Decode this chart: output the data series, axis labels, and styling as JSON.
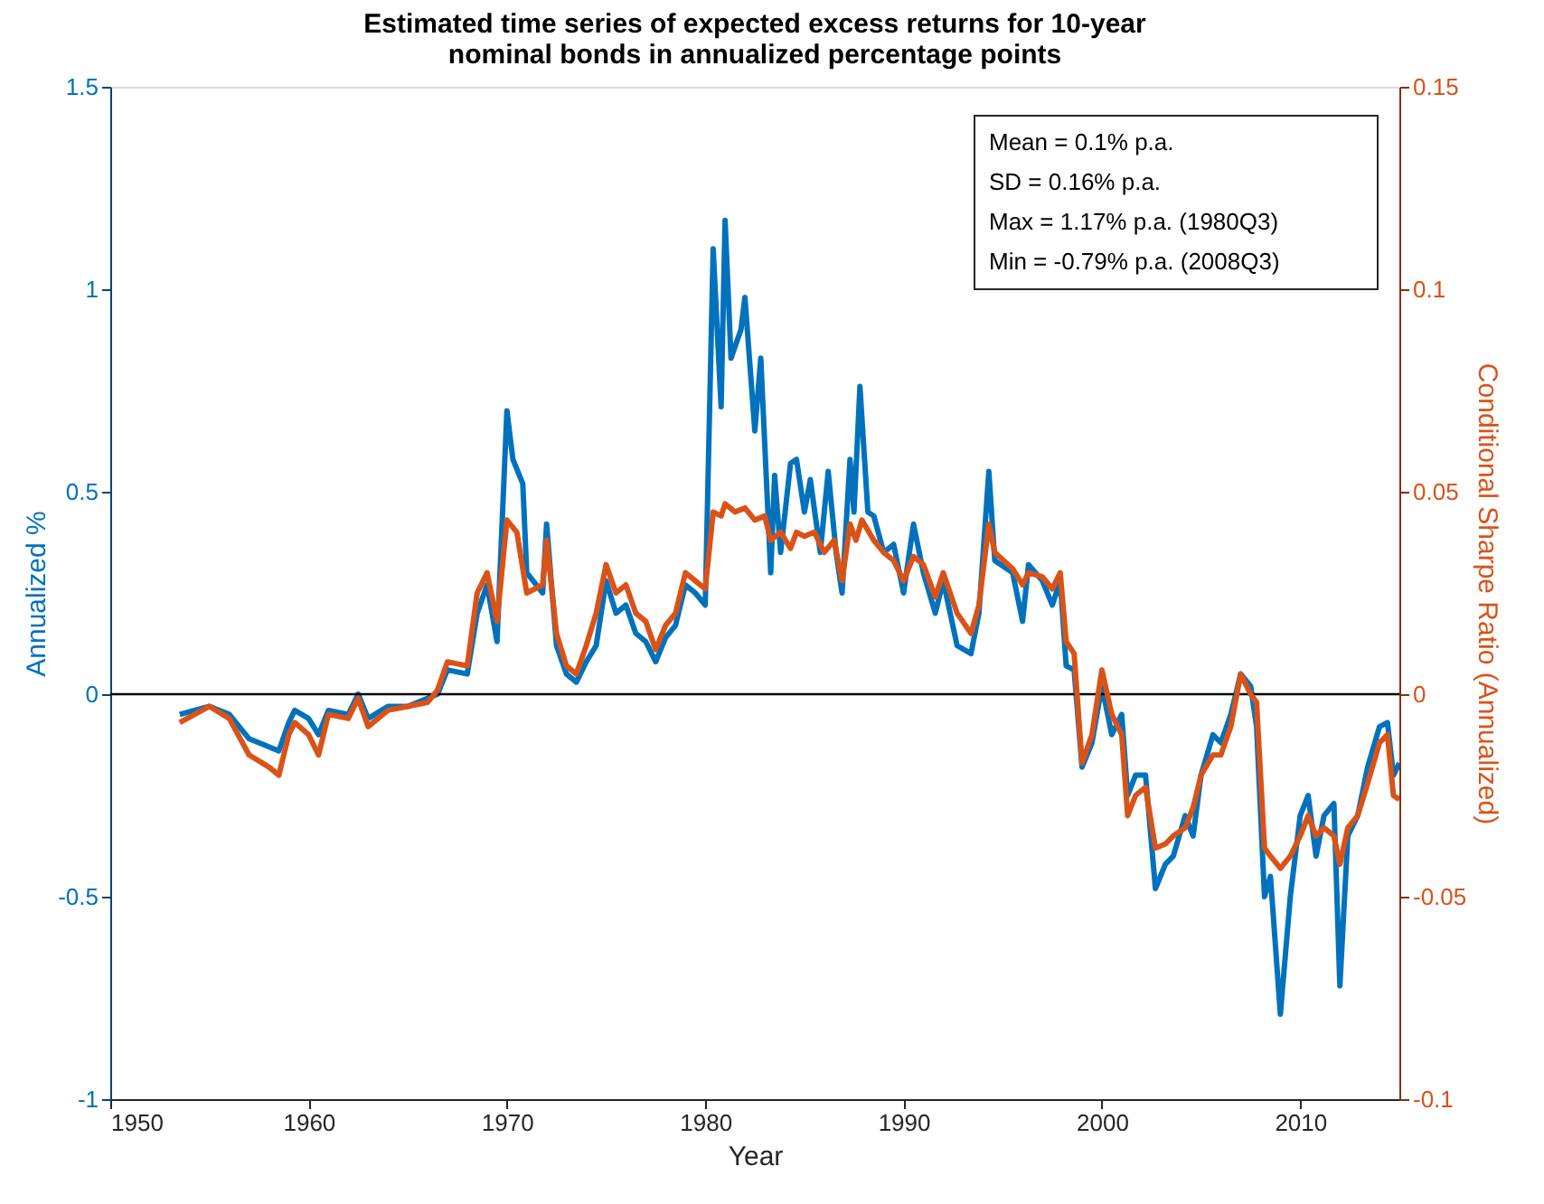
{
  "chart_data": {
    "type": "line",
    "title": "Estimated time series of expected excess returns for 10-year\nnominal bonds in annualized percentage points",
    "xlabel": "Year",
    "ylabel": "Annualized %",
    "y2label": "Conditional Sharpe Ratio (Annualized)",
    "xlim": [
      1950,
      2015
    ],
    "xticks": [
      1950,
      1960,
      1970,
      1980,
      1990,
      2000,
      2010
    ],
    "ylim": [
      -1,
      1.5
    ],
    "yticks": [
      -1,
      -0.5,
      0,
      0.5,
      1,
      1.5
    ],
    "y2lim": [
      -0.1,
      0.15
    ],
    "y2ticks": [
      -0.1,
      -0.05,
      0,
      0.05,
      0.1,
      0.15
    ],
    "grid": false,
    "ref_lines": [
      {
        "axis": "y",
        "value": 0,
        "color": "#000000"
      }
    ],
    "annotations": [
      "Mean = 0.1% p.a.",
      "SD = 0.16% p.a.",
      "Max = 1.17% p.a. (1980Q3)",
      "Min = -0.79% p.a. (2008Q3)"
    ],
    "series": [
      {
        "color": "#0072bd",
        "x": [
          1953.5,
          1955,
          1956,
          1957,
          1958,
          1958.5,
          1959,
          1959.3,
          1960,
          1960.5,
          1961,
          1962,
          1962.5,
          1963,
          1964,
          1965,
          1966,
          1966.5,
          1967,
          1968,
          1968.5,
          1969,
          1969.5,
          1970,
          1970.3,
          1970.8,
          1971,
          1971.8,
          1972,
          1972.5,
          1973,
          1973.5,
          1974,
          1974.5,
          1975,
          1975.5,
          1976,
          1976.5,
          1977,
          1977.5,
          1978,
          1978.5,
          1979,
          1979.5,
          1980,
          1980.4,
          1980.8,
          1981,
          1981.3,
          1981.8,
          1982,
          1982.5,
          1982.8,
          1983.3,
          1983.5,
          1983.8,
          1984.3,
          1984.6,
          1985,
          1985.3,
          1985.8,
          1986.2,
          1986.6,
          1986.9,
          1987.3,
          1987.5,
          1987.8,
          1988.2,
          1988.5,
          1989,
          1989.5,
          1990,
          1990.5,
          1991,
          1991.6,
          1992,
          1992.7,
          1993.4,
          1993.8,
          1994.3,
          1994.6,
          1995.5,
          1996,
          1996.3,
          1997,
          1997.5,
          1997.9,
          1998.2,
          1998.6,
          1999,
          1999.5,
          2000,
          2000.5,
          2001,
          2001.3,
          2001.7,
          2002.2,
          2002.7,
          2003.2,
          2003.6,
          2004.2,
          2004.6,
          2005,
          2005.6,
          2006,
          2006.5,
          2007,
          2007.5,
          2007.8,
          2008.2,
          2008.5,
          2009,
          2009.5,
          2010,
          2010.4,
          2010.8,
          2011.2,
          2011.7,
          2012,
          2012.4,
          2012.9,
          2013.4,
          2014,
          2014.4,
          2014.7,
          2015
        ],
        "values": [
          -0.05,
          -0.03,
          -0.05,
          -0.11,
          -0.13,
          -0.14,
          -0.07,
          -0.04,
          -0.06,
          -0.1,
          -0.04,
          -0.05,
          0.0,
          -0.06,
          -0.03,
          -0.03,
          -0.01,
          0.0,
          0.06,
          0.05,
          0.2,
          0.27,
          0.13,
          0.7,
          0.58,
          0.52,
          0.3,
          0.25,
          0.42,
          0.12,
          0.05,
          0.03,
          0.08,
          0.12,
          0.28,
          0.2,
          0.22,
          0.15,
          0.13,
          0.08,
          0.14,
          0.17,
          0.27,
          0.25,
          0.22,
          1.1,
          0.71,
          1.17,
          0.83,
          0.9,
          0.98,
          0.65,
          0.83,
          0.3,
          0.54,
          0.35,
          0.57,
          0.58,
          0.45,
          0.53,
          0.35,
          0.55,
          0.35,
          0.25,
          0.58,
          0.45,
          0.76,
          0.45,
          0.44,
          0.35,
          0.37,
          0.25,
          0.42,
          0.3,
          0.2,
          0.28,
          0.12,
          0.1,
          0.2,
          0.55,
          0.33,
          0.3,
          0.18,
          0.32,
          0.28,
          0.22,
          0.28,
          0.07,
          0.06,
          -0.18,
          -0.12,
          0.02,
          -0.1,
          -0.05,
          -0.25,
          -0.2,
          -0.2,
          -0.48,
          -0.42,
          -0.4,
          -0.3,
          -0.35,
          -0.2,
          -0.1,
          -0.12,
          -0.05,
          0.05,
          0.02,
          -0.08,
          -0.5,
          -0.45,
          -0.79,
          -0.5,
          -0.3,
          -0.25,
          -0.4,
          -0.3,
          -0.27,
          -0.72,
          -0.35,
          -0.3,
          -0.18,
          -0.08,
          -0.07,
          -0.2,
          -0.17
        ]
      },
      {
        "color": "#d95319",
        "axis": "y2",
        "x": [
          1953.5,
          1955,
          1956,
          1957,
          1958,
          1958.5,
          1959,
          1959.3,
          1960,
          1960.5,
          1961,
          1962,
          1962.5,
          1963,
          1964,
          1965,
          1966,
          1966.5,
          1967,
          1968,
          1968.5,
          1969,
          1969.5,
          1970,
          1970.5,
          1971,
          1971.8,
          1972,
          1972.5,
          1973,
          1973.5,
          1974,
          1974.5,
          1975,
          1975.5,
          1976,
          1976.5,
          1977,
          1977.5,
          1978,
          1978.5,
          1979,
          1979.5,
          1980,
          1980.4,
          1980.8,
          1981,
          1981.5,
          1982,
          1982.5,
          1983,
          1983.3,
          1983.8,
          1984.3,
          1984.6,
          1985,
          1985.5,
          1986,
          1986.5,
          1986.9,
          1987.3,
          1987.6,
          1987.9,
          1988.5,
          1989,
          1989.5,
          1990,
          1990.5,
          1991,
          1991.6,
          1992,
          1992.7,
          1993.4,
          1993.8,
          1994.3,
          1994.6,
          1995.5,
          1996,
          1996.3,
          1997,
          1997.5,
          1997.9,
          1998.2,
          1998.6,
          1999,
          1999.5,
          2000,
          2000.5,
          2001,
          2001.3,
          2001.7,
          2002.2,
          2002.7,
          2003.2,
          2003.6,
          2004.2,
          2004.6,
          2005,
          2005.6,
          2006,
          2006.5,
          2007,
          2007.5,
          2007.8,
          2008.2,
          2008.5,
          2009,
          2009.5,
          2010,
          2010.4,
          2010.8,
          2011.2,
          2011.7,
          2012,
          2012.4,
          2012.9,
          2013.4,
          2014,
          2014.4,
          2014.7,
          2015
        ],
        "values": [
          -0.007,
          -0.003,
          -0.006,
          -0.015,
          -0.018,
          -0.02,
          -0.01,
          -0.007,
          -0.01,
          -0.015,
          -0.005,
          -0.006,
          -0.001,
          -0.008,
          -0.004,
          -0.003,
          -0.002,
          0.001,
          0.008,
          0.007,
          0.025,
          0.03,
          0.018,
          0.043,
          0.04,
          0.025,
          0.027,
          0.038,
          0.015,
          0.007,
          0.005,
          0.012,
          0.02,
          0.032,
          0.025,
          0.027,
          0.02,
          0.018,
          0.011,
          0.017,
          0.02,
          0.03,
          0.028,
          0.026,
          0.045,
          0.044,
          0.047,
          0.045,
          0.046,
          0.043,
          0.044,
          0.038,
          0.04,
          0.036,
          0.04,
          0.039,
          0.04,
          0.035,
          0.038,
          0.028,
          0.042,
          0.038,
          0.043,
          0.038,
          0.035,
          0.033,
          0.028,
          0.034,
          0.032,
          0.024,
          0.03,
          0.02,
          0.015,
          0.022,
          0.042,
          0.035,
          0.031,
          0.027,
          0.03,
          0.029,
          0.026,
          0.03,
          0.013,
          0.01,
          -0.017,
          -0.01,
          0.006,
          -0.005,
          -0.01,
          -0.03,
          -0.025,
          -0.023,
          -0.038,
          -0.037,
          -0.035,
          -0.033,
          -0.028,
          -0.02,
          -0.015,
          -0.015,
          -0.008,
          0.005,
          0.0,
          -0.002,
          -0.038,
          -0.04,
          -0.043,
          -0.04,
          -0.035,
          -0.03,
          -0.035,
          -0.033,
          -0.035,
          -0.042,
          -0.033,
          -0.03,
          -0.022,
          -0.012,
          -0.01,
          -0.025,
          -0.026
        ]
      }
    ]
  }
}
